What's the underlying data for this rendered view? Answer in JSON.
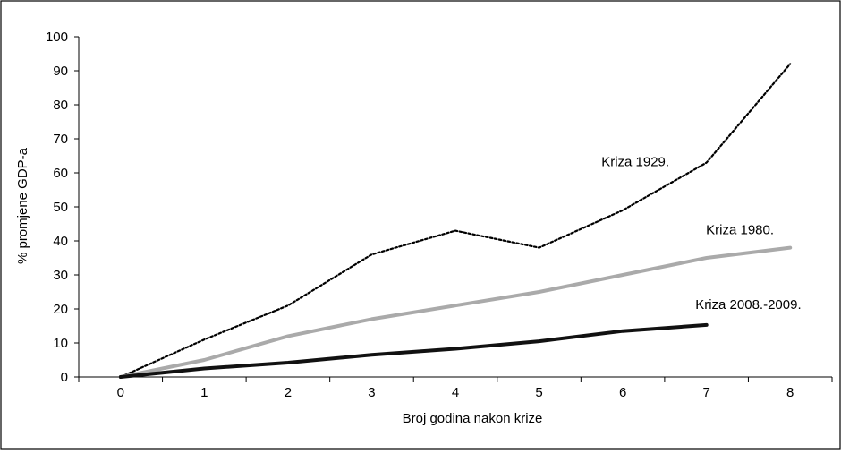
{
  "chart_data": {
    "type": "line",
    "xlabel": "Broj godina nakon krize",
    "ylabel": "% promjene GDP-a",
    "x": [
      0,
      1,
      2,
      3,
      4,
      5,
      6,
      7,
      8
    ],
    "x_ticks": [
      "0",
      "1",
      "2",
      "3",
      "4",
      "5",
      "6",
      "7",
      "8"
    ],
    "ylim": [
      0,
      100
    ],
    "y_ticks": [
      "0",
      "10",
      "20",
      "30",
      "40",
      "50",
      "60",
      "70",
      "80",
      "90",
      "100"
    ],
    "grid": false,
    "legend": "none",
    "series": [
      {
        "name": "Kriza 1929.",
        "x": [
          0,
          1,
          2,
          3,
          4,
          5,
          6,
          7,
          8
        ],
        "values": [
          0,
          11,
          21,
          36,
          43,
          38,
          49,
          63,
          92
        ],
        "color": "#000000",
        "style": "dotted"
      },
      {
        "name": "Kriza 1980.",
        "x": [
          0,
          1,
          2,
          3,
          4,
          5,
          6,
          7,
          8
        ],
        "values": [
          0,
          5,
          12,
          17,
          21,
          25,
          30,
          35,
          38
        ],
        "color": "#aaaaaa",
        "style": "solid"
      },
      {
        "name": "Kriza 2008.-2009.",
        "x": [
          0,
          1,
          2,
          3,
          4,
          5,
          6,
          7
        ],
        "values": [
          0,
          2.5,
          4.2,
          6.5,
          8.3,
          10.5,
          13.5,
          15.3
        ],
        "color": "#111111",
        "style": "solid"
      }
    ]
  }
}
